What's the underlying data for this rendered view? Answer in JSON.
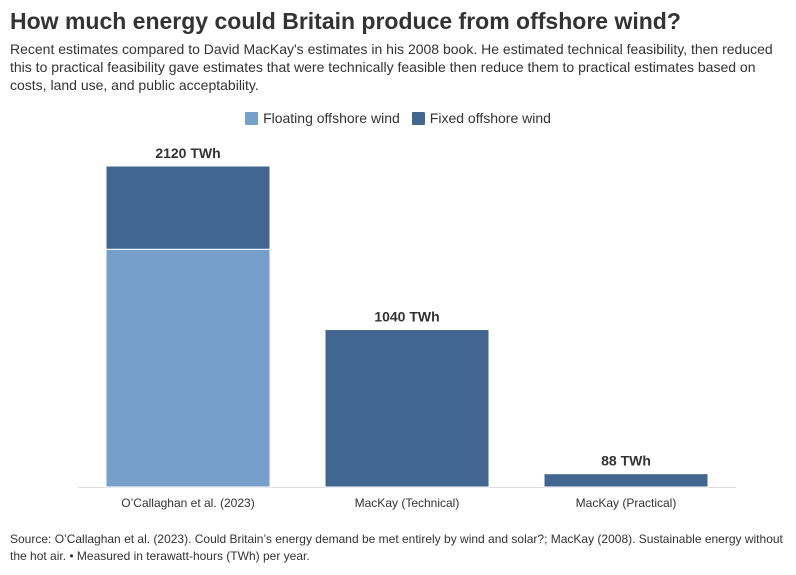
{
  "title": "How much energy could Britain produce from offshore wind?",
  "subtitle": "Recent estimates compared to David MacKay's estimates in his 2008 book. He estimated technical feasibility, then reduced this to practical feasibility gave estimates that were technically feasible then reduce them to practical estimates based on costs, land use, and public acceptability.",
  "source": "Source: O’Callaghan et al. (2023). Could Britain’s energy demand be met entirely by wind and solar?; MacKay (2008). Sustainable energy without the hot air. • Measured in terawatt-hours (TWh) per year.",
  "colors": {
    "floating": "#779fcb",
    "fixed": "#416791",
    "axis": "#dddddd",
    "text": "#333333"
  },
  "chart_data": {
    "type": "bar",
    "stacked": true,
    "categories": [
      "O’Callaghan et al. (2023)",
      "MacKay (Technical)",
      "MacKay (Practical)"
    ],
    "series": [
      {
        "name": "Floating offshore wind",
        "values": [
          1570,
          0,
          0
        ]
      },
      {
        "name": "Fixed offshore wind",
        "values": [
          550,
          1040,
          88
        ]
      }
    ],
    "totals": [
      2120,
      1040,
      88
    ],
    "total_labels": [
      "2120 TWh",
      "1040 TWh",
      "88 TWh"
    ],
    "ylim": [
      0,
      2120
    ],
    "grid": false,
    "legend": "top-center"
  }
}
